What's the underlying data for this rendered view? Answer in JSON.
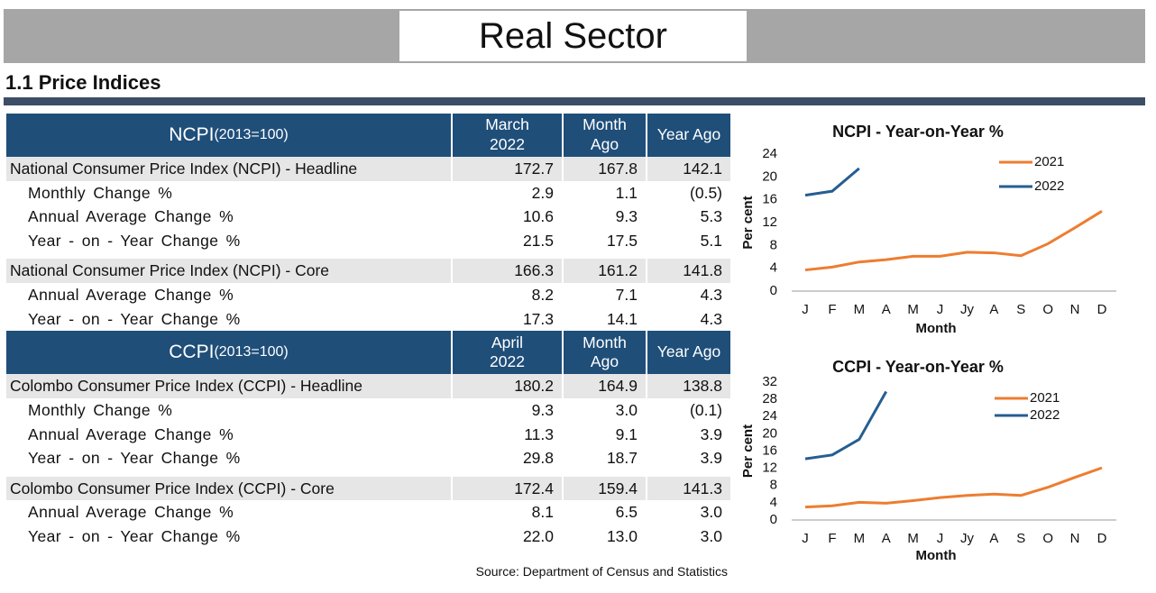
{
  "header": {
    "title": "Real Sector",
    "section": "1.1 Price Indices"
  },
  "tables": [
    {
      "name": "NCPI",
      "note": "(2013=100)",
      "columns": [
        [
          "March",
          "2022"
        ],
        [
          "Month",
          "Ago"
        ],
        [
          "Year Ago"
        ]
      ],
      "groups": [
        {
          "title": "National Consumer Price Index (NCPI) - Headline",
          "values": [
            "172.7",
            "167.8",
            "142.1"
          ],
          "rows": [
            {
              "label": "Monthly Change %",
              "values": [
                "2.9",
                "1.1",
                "(0.5)"
              ]
            },
            {
              "label": "Annual Average Change %",
              "values": [
                "10.6",
                "9.3",
                "5.3"
              ]
            },
            {
              "label": "Year - on - Year Change %",
              "values": [
                "21.5",
                "17.5",
                "5.1"
              ]
            }
          ]
        },
        {
          "title": "National Consumer Price Index (NCPI) - Core",
          "values": [
            "166.3",
            "161.2",
            "141.8"
          ],
          "rows": [
            {
              "label": "Annual Average Change %",
              "values": [
                "8.2",
                "7.1",
                "4.3"
              ]
            },
            {
              "label": "Year - on - Year Change %",
              "values": [
                "17.3",
                "14.1",
                "4.3"
              ]
            }
          ]
        }
      ]
    },
    {
      "name": "CCPI",
      "note": "(2013=100)",
      "columns": [
        [
          "April",
          "2022"
        ],
        [
          "Month",
          "Ago"
        ],
        [
          "Year Ago"
        ]
      ],
      "groups": [
        {
          "title": "Colombo Consumer Price Index (CCPI) - Headline",
          "values": [
            "180.2",
            "164.9",
            "138.8"
          ],
          "rows": [
            {
              "label": "Monthly Change %",
              "values": [
                "9.3",
                "3.0",
                "(0.1)"
              ]
            },
            {
              "label": "Annual Average Change %",
              "values": [
                "11.3",
                "9.1",
                "3.9"
              ]
            },
            {
              "label": "Year - on - Year Change %",
              "values": [
                "29.8",
                "18.7",
                "3.9"
              ]
            }
          ]
        },
        {
          "title": "Colombo Consumer Price Index (CCPI) - Core",
          "values": [
            "172.4",
            "159.4",
            "141.3"
          ],
          "rows": [
            {
              "label": "Annual Average Change %",
              "values": [
                "8.1",
                "6.5",
                "3.0"
              ]
            },
            {
              "label": "Year - on - Year Change %",
              "values": [
                "22.0",
                "13.0",
                "3.0"
              ]
            }
          ]
        }
      ]
    }
  ],
  "source": "Source: Department of Census and Statistics",
  "chart_data": [
    {
      "type": "line",
      "title": "NCPI -  Year-on-Year %",
      "y_label": "Per cent",
      "x_label": "Month",
      "categories": [
        "J",
        "F",
        "M",
        "A",
        "M",
        "J",
        "Jy",
        "A",
        "S",
        "O",
        "N",
        "D"
      ],
      "series": [
        {
          "name": "2021",
          "color": "#ed7d31",
          "values": [
            3.7,
            4.2,
            5.1,
            5.5,
            6.1,
            6.1,
            6.8,
            6.7,
            6.2,
            8.3,
            11.1,
            14.0
          ]
        },
        {
          "name": "2022",
          "color": "#255e91",
          "values": [
            16.8,
            17.5,
            21.5,
            null,
            null,
            null,
            null,
            null,
            null,
            null,
            null,
            null
          ]
        }
      ],
      "ylim": [
        0,
        24
      ],
      "yticks": [
        0,
        4,
        8,
        12,
        16,
        20,
        24
      ],
      "grid": false,
      "legend": "upper right"
    },
    {
      "type": "line",
      "title": "CCPI - Year-on-Year %",
      "y_label": "Per cent",
      "x_label": "Month",
      "categories": [
        "J",
        "F",
        "M",
        "A",
        "M",
        "J",
        "Jy",
        "A",
        "S",
        "O",
        "N",
        "D"
      ],
      "series": [
        {
          "name": "2021",
          "color": "#ed7d31",
          "values": [
            3.0,
            3.3,
            4.1,
            3.9,
            4.5,
            5.2,
            5.7,
            6.0,
            5.7,
            7.6,
            9.9,
            12.1
          ]
        },
        {
          "name": "2022",
          "color": "#255e91",
          "values": [
            14.2,
            15.1,
            18.7,
            29.8,
            null,
            null,
            null,
            null,
            null,
            null,
            null,
            null
          ]
        }
      ],
      "ylim": [
        0,
        32
      ],
      "yticks": [
        0,
        4,
        8,
        12,
        16,
        20,
        24,
        28,
        32
      ],
      "grid": false,
      "legend": "upper right"
    }
  ]
}
